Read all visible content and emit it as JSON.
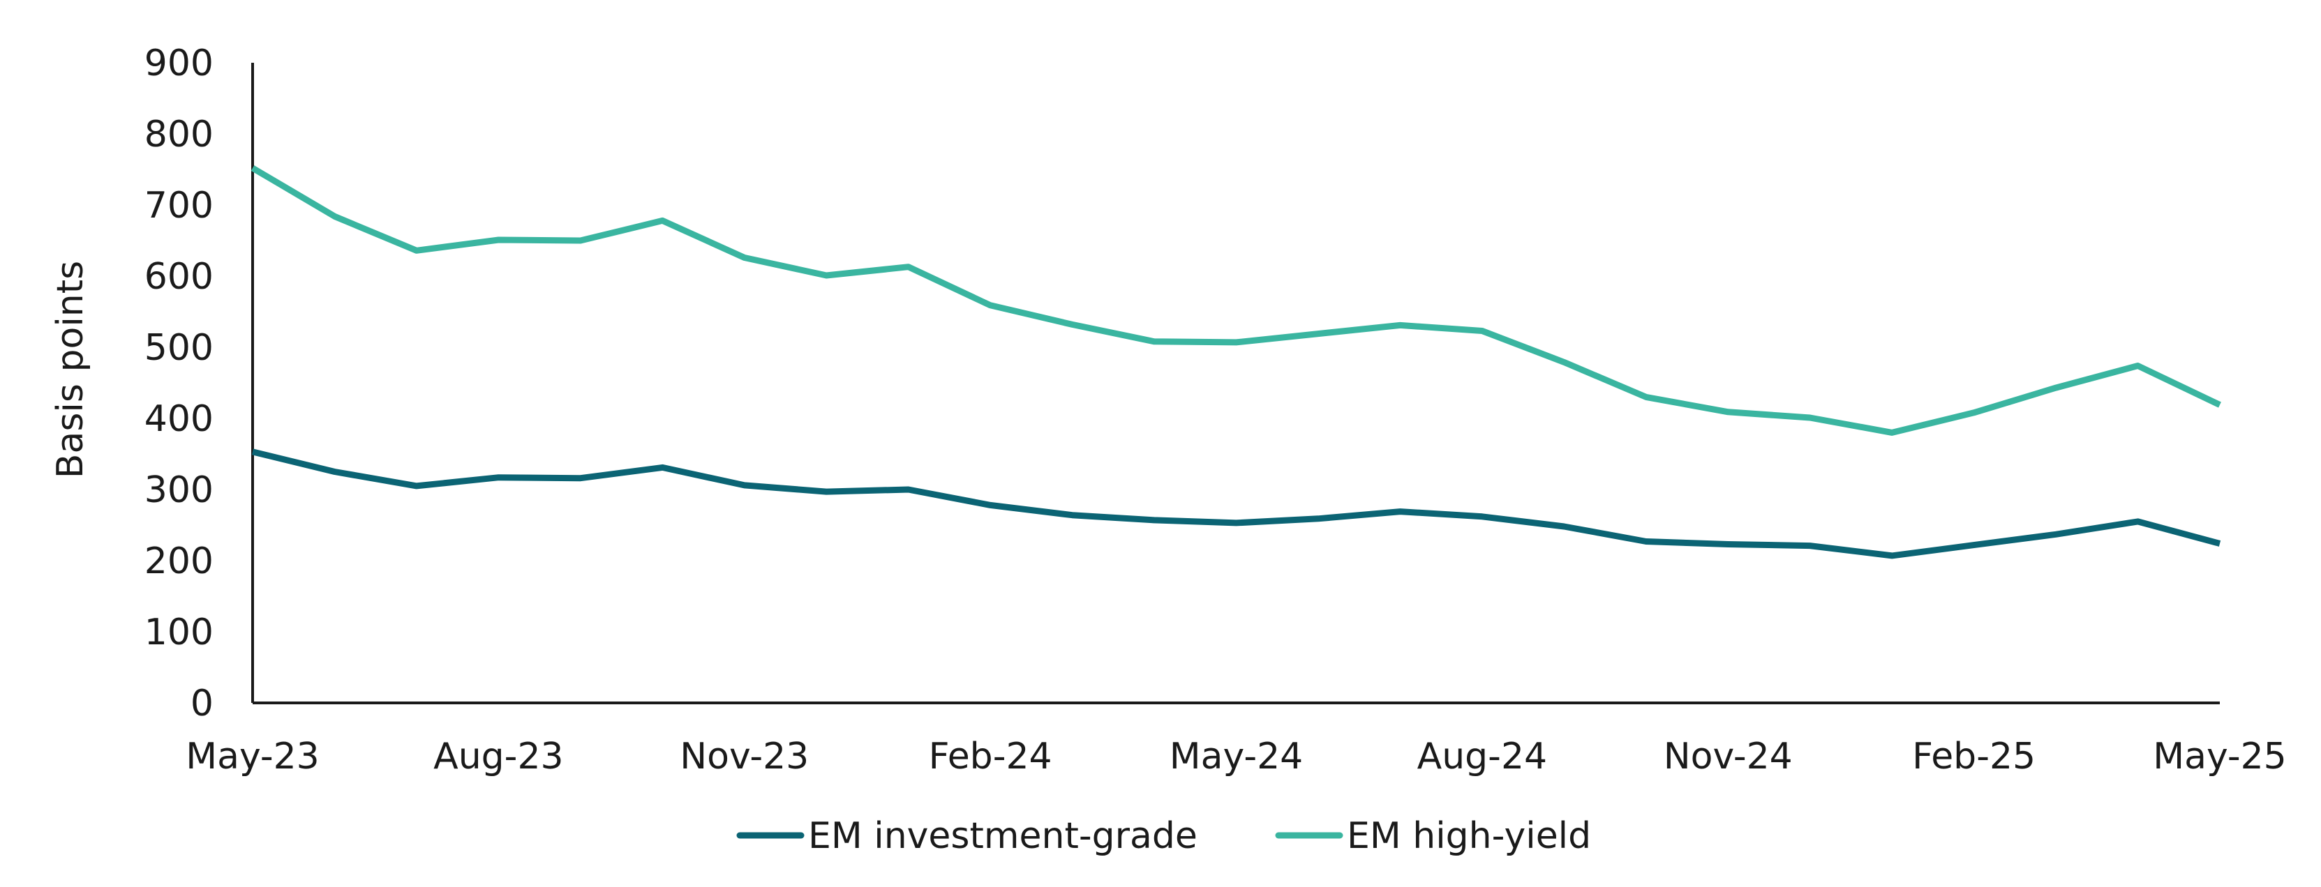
{
  "chart_data": {
    "type": "line",
    "title": "",
    "xlabel": "",
    "ylabel": "Basis points",
    "ylim": [
      0,
      900
    ],
    "yticks": [
      0,
      100,
      200,
      300,
      400,
      500,
      600,
      700,
      800,
      900
    ],
    "ytick_labels": [
      "0",
      "100",
      "200",
      "300",
      "400",
      "500",
      "600",
      "700",
      "800",
      "900"
    ],
    "x": [
      "May-23",
      "Jun-23",
      "Jul-23",
      "Aug-23",
      "Sep-23",
      "Oct-23",
      "Nov-23",
      "Dec-23",
      "Jan-24",
      "Feb-24",
      "Mar-24",
      "Apr-24",
      "May-24",
      "Jun-24",
      "Jul-24",
      "Aug-24",
      "Sep-24",
      "Oct-24",
      "Nov-24",
      "Dec-24",
      "Jan-25",
      "Feb-25",
      "Mar-25",
      "Apr-25",
      "May-25"
    ],
    "xtick_labels": [
      {
        "index": 0,
        "label": "May-23"
      },
      {
        "index": 3,
        "label": "Aug-23"
      },
      {
        "index": 6,
        "label": "Nov-23"
      },
      {
        "index": 9,
        "label": "Feb-24"
      },
      {
        "index": 12,
        "label": "May-24"
      },
      {
        "index": 15,
        "label": "Aug-24"
      },
      {
        "index": 18,
        "label": "Nov-24"
      },
      {
        "index": 21,
        "label": "Feb-25"
      },
      {
        "index": 24,
        "label": "May-25"
      }
    ],
    "series": [
      {
        "name": "EM investment-grade",
        "color": "#0b6474",
        "values": [
          353,
          325,
          305,
          317,
          316,
          331,
          306,
          297,
          300,
          278,
          264,
          257,
          253,
          259,
          269,
          262,
          248,
          227,
          223,
          221,
          207,
          222,
          237,
          255,
          224
        ]
      },
      {
        "name": "EM high-yield",
        "color": "#3ab5a0",
        "values": [
          752,
          684,
          636,
          651,
          650,
          678,
          626,
          601,
          613,
          559,
          532,
          508,
          507,
          519,
          531,
          523,
          479,
          430,
          409,
          401,
          380,
          408,
          443,
          474,
          419
        ]
      }
    ],
    "legend": "bottom-center"
  }
}
